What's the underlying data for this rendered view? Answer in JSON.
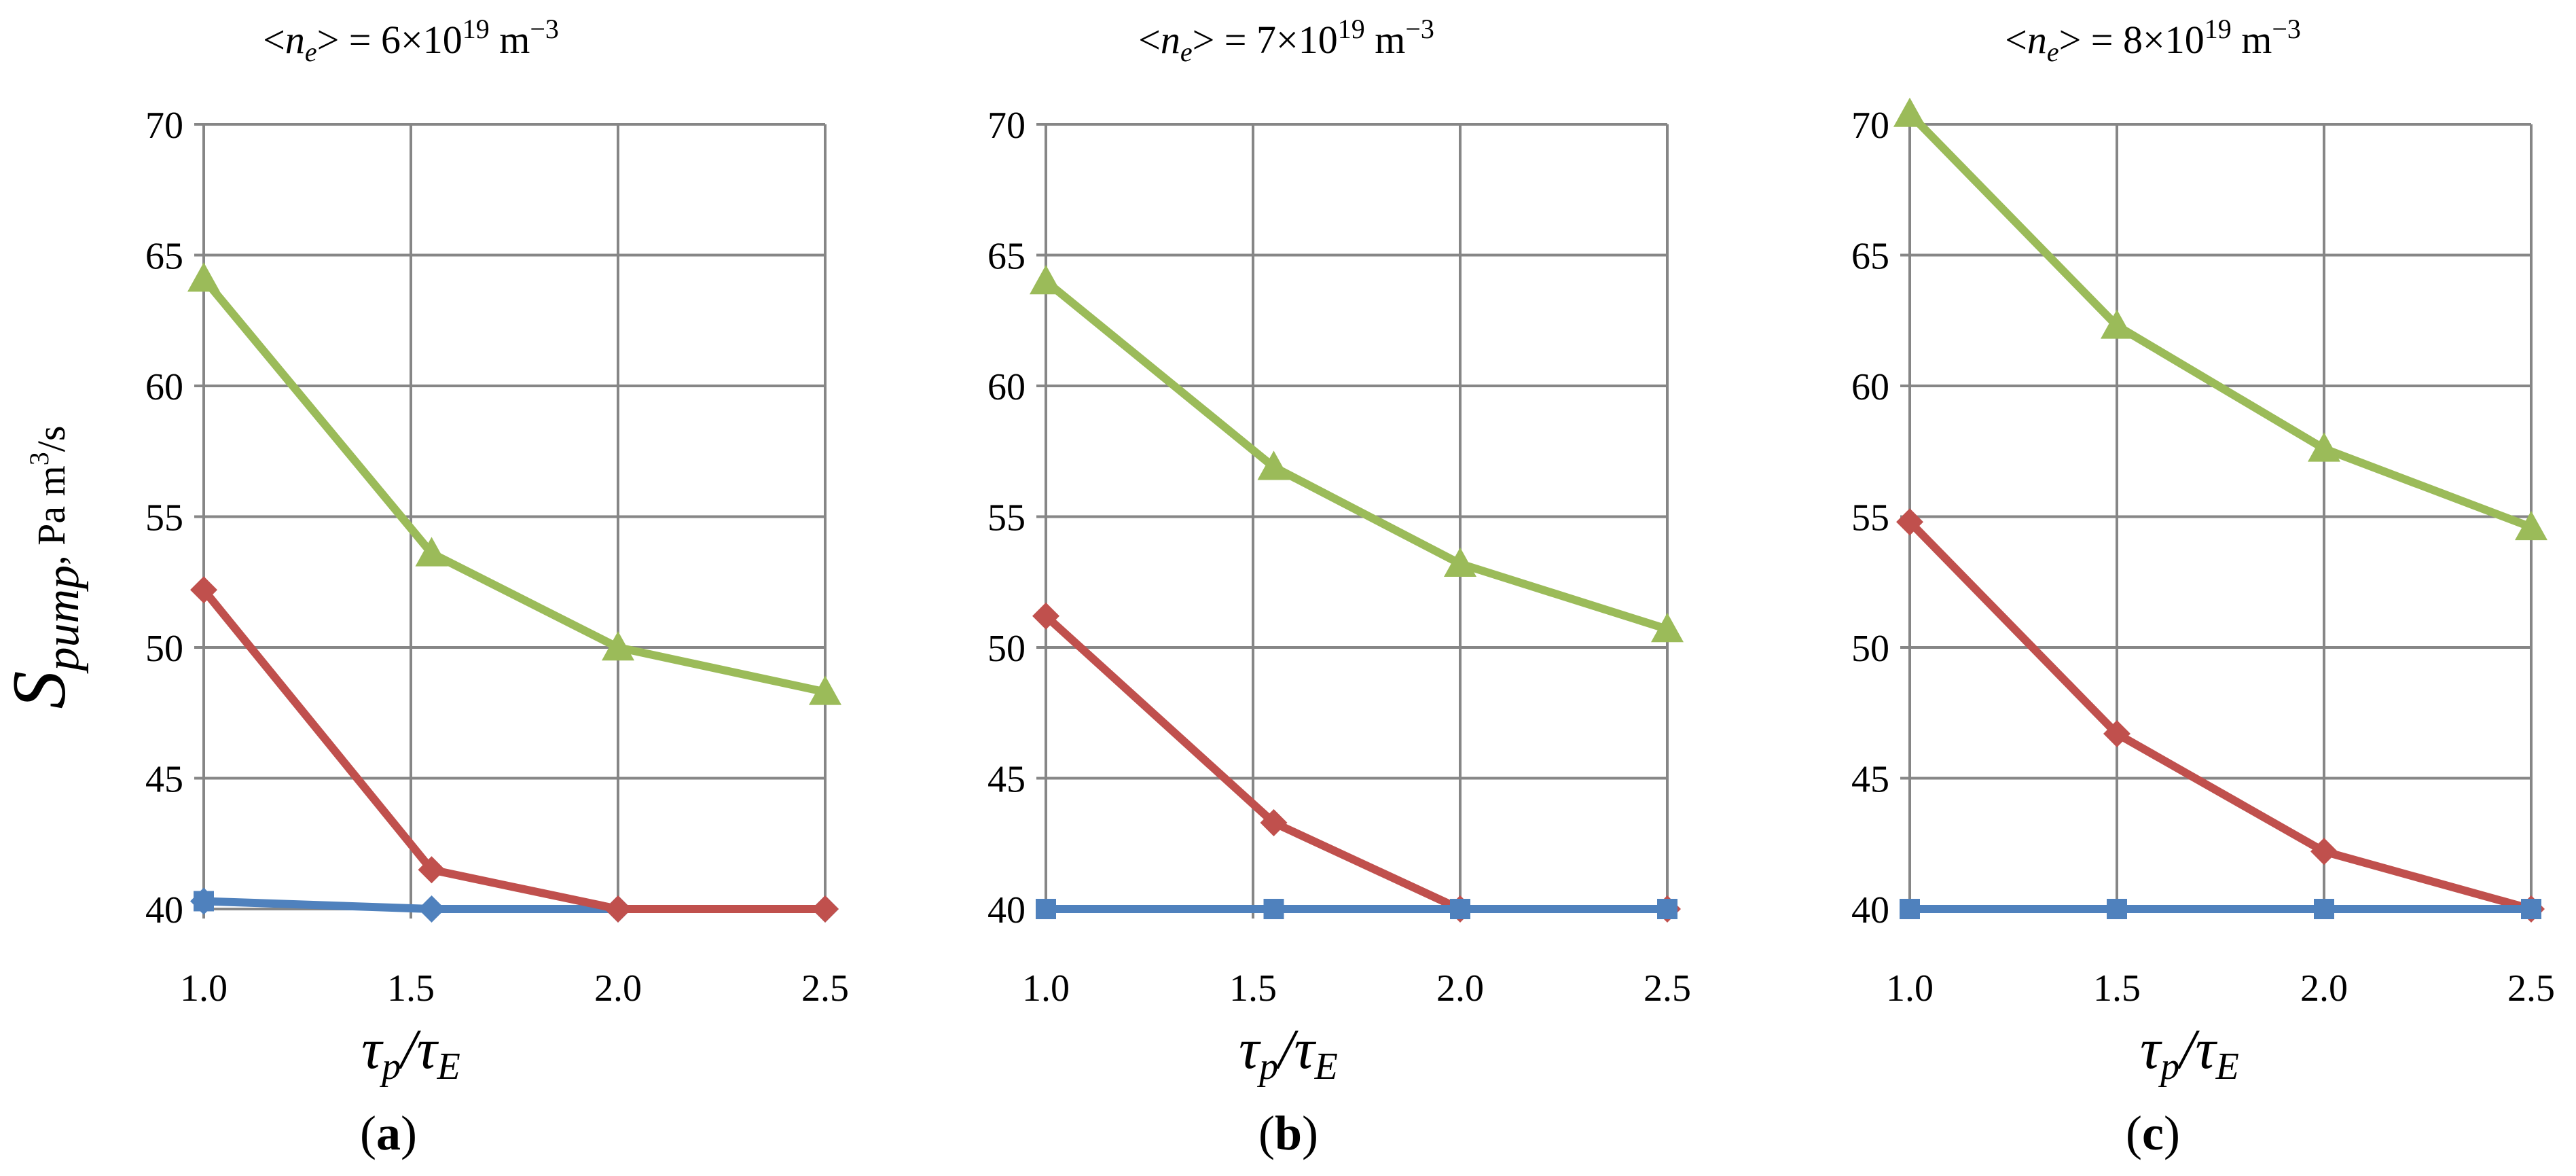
{
  "figure": {
    "ylabel_main": "S",
    "ylabel_sub": "pump",
    "ylabel_unit": ", Pa m",
    "ylabel_unit_sup": "3",
    "ylabel_unit_tail": "/s",
    "xlabel_tau": "τ",
    "xlabel_p": "p",
    "xlabel_slash": "/τ",
    "xlabel_E": "E"
  },
  "colors": {
    "blue": "#4f81bd",
    "red": "#c0504d",
    "green": "#9bbb59",
    "grid": "#868686"
  },
  "chart_data": [
    {
      "type": "line",
      "panel_label": "a",
      "title_prefix": "<",
      "title_var": "n",
      "title_sub": "e",
      "title_mid": "> = 6×10",
      "title_exp": "19",
      "title_unit": " m",
      "title_unit_exp": "−3",
      "x": [
        1.0,
        1.55,
        2.0,
        2.5
      ],
      "xticks": [
        "1.0",
        "1.5",
        "2.0",
        "2.5"
      ],
      "xlim": [
        1.0,
        2.5
      ],
      "yticks": [
        "40",
        "45",
        "50",
        "55",
        "60",
        "65",
        "70"
      ],
      "ylim": [
        40,
        70
      ],
      "grid": true,
      "series": [
        {
          "color": "blue",
          "marker": "square",
          "values": [
            40.3,
            null,
            null,
            null
          ]
        },
        {
          "color": "blue",
          "marker": "diamond",
          "values": [
            40.3,
            40.0,
            40.0,
            40.0
          ]
        },
        {
          "color": "red",
          "marker": "diamond",
          "values": [
            52.2,
            41.5,
            40.0,
            40.0
          ]
        },
        {
          "color": "green",
          "marker": "triangle",
          "values": [
            64.1,
            53.6,
            50.0,
            48.3
          ]
        }
      ]
    },
    {
      "type": "line",
      "panel_label": "b",
      "title_prefix": "<",
      "title_var": "n",
      "title_sub": "e",
      "title_mid": "> = 7×10",
      "title_exp": "19",
      "title_unit": " m",
      "title_unit_exp": "−3",
      "x": [
        1.0,
        1.55,
        2.0,
        2.5
      ],
      "xticks": [
        "1.0",
        "1.5",
        "2.0",
        "2.5"
      ],
      "xlim": [
        1.0,
        2.5
      ],
      "yticks": [
        "40",
        "45",
        "50",
        "55",
        "60",
        "65",
        "70"
      ],
      "ylim": [
        40,
        70
      ],
      "grid": true,
      "series": [
        {
          "color": "red",
          "marker": "diamond",
          "values": [
            51.2,
            43.3,
            40.0,
            40.0
          ]
        },
        {
          "color": "blue",
          "marker": "square",
          "values": [
            40.0,
            40.0,
            40.0,
            40.0
          ]
        },
        {
          "color": "green",
          "marker": "triangle",
          "values": [
            64.0,
            56.9,
            53.2,
            50.7
          ]
        }
      ]
    },
    {
      "type": "line",
      "panel_label": "c",
      "title_prefix": "<",
      "title_var": "n",
      "title_sub": "e",
      "title_mid": "> = 8×10",
      "title_exp": "19",
      "title_unit": " m",
      "title_unit_exp": "−3",
      "x": [
        1.0,
        1.5,
        2.0,
        2.5
      ],
      "xticks": [
        "1.0",
        "1.5",
        "2.0",
        "2.5"
      ],
      "xlim": [
        1.0,
        2.5
      ],
      "yticks": [
        "40",
        "45",
        "50",
        "55",
        "60",
        "65",
        "70"
      ],
      "ylim": [
        40,
        70
      ],
      "grid": true,
      "series": [
        {
          "color": "red",
          "marker": "diamond",
          "values": [
            54.8,
            46.7,
            42.2,
            40.0
          ]
        },
        {
          "color": "blue",
          "marker": "square",
          "values": [
            40.0,
            40.0,
            40.0,
            40.0
          ]
        },
        {
          "color": "green",
          "marker": "triangle",
          "values": [
            70.4,
            62.3,
            57.6,
            54.6
          ]
        }
      ]
    }
  ]
}
